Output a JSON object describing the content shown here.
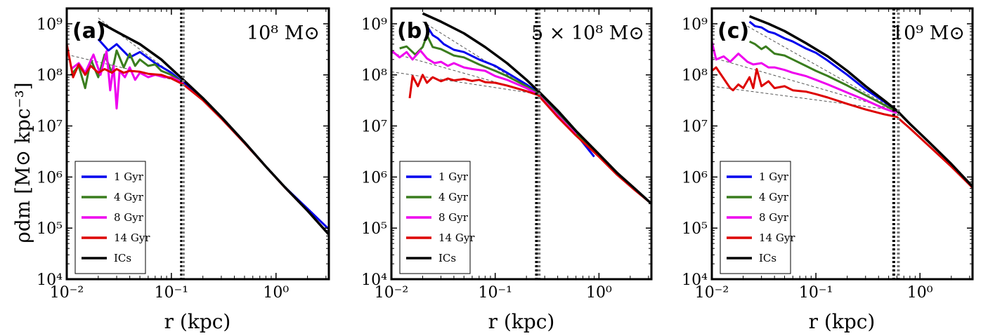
{
  "figure": {
    "ylabel": "ρdm [M⊙ kpc⁻³]",
    "xlabel": "r (kpc)"
  },
  "chart_data": [
    {
      "type": "line",
      "panel_tag": "(a)",
      "mass_label": "10⁸ M⊙",
      "xlabel": "r (kpc)",
      "ylabel": "ρdm [M⊙ kpc⁻³]",
      "xscale": "log",
      "yscale": "log",
      "xlim": [
        0.01,
        3.2
      ],
      "ylim": [
        10000,
        2000000000
      ],
      "xticks": [
        "10⁻²",
        "10⁻¹",
        "10⁰"
      ],
      "yticks": [
        "10⁴",
        "10⁵",
        "10⁶",
        "10⁷",
        "10⁸",
        "10⁹"
      ],
      "vlines": [
        0.125,
        0.13
      ],
      "legend": {
        "position": "lower-left",
        "entries": [
          {
            "label": "1 Gyr",
            "color": "#0000ee"
          },
          {
            "label": "4 Gyr",
            "color": "#3a7d1e"
          },
          {
            "label": "8 Gyr",
            "color": "#ee00ee"
          },
          {
            "label": "14 Gyr",
            "color": "#dd0000"
          },
          {
            "label": "ICs",
            "color": "#000000"
          }
        ]
      },
      "series": [
        {
          "name": "ICs",
          "color": "#000000",
          "x": [
            0.02,
            0.03,
            0.05,
            0.08,
            0.13,
            0.2,
            0.3,
            0.5,
            0.8,
            1.2,
            2.0,
            3.2
          ],
          "y": [
            1100000000,
            700000000,
            400000000,
            200000000,
            80000000,
            35000000,
            15000000,
            4800000,
            1600000,
            650000,
            220000,
            75000
          ]
        },
        {
          "name": "1 Gyr",
          "color": "#0000ee",
          "x": [
            0.02,
            0.025,
            0.03,
            0.04,
            0.05,
            0.07,
            0.1,
            0.13,
            0.2,
            0.3,
            0.5,
            0.8,
            1.2,
            2.0,
            3.2
          ],
          "y": [
            500000000,
            300000000,
            400000000,
            220000000,
            280000000,
            170000000,
            110000000,
            70000000,
            35000000,
            15000000,
            4800000,
            1600000,
            650000,
            240000,
            95000
          ]
        },
        {
          "name": "4 Gyr",
          "color": "#3a7d1e",
          "x": [
            0.011,
            0.013,
            0.015,
            0.017,
            0.02,
            0.023,
            0.027,
            0.03,
            0.035,
            0.04,
            0.045,
            0.05,
            0.06,
            0.07,
            0.08,
            0.1,
            0.13
          ],
          "y": [
            100000000,
            150000000,
            55000000,
            200000000,
            90000000,
            250000000,
            110000000,
            300000000,
            140000000,
            260000000,
            150000000,
            200000000,
            150000000,
            160000000,
            120000000,
            100000000,
            70000000
          ]
        },
        {
          "name": "8 Gyr",
          "color": "#ee00ee",
          "x": [
            0.011,
            0.013,
            0.015,
            0.018,
            0.021,
            0.024,
            0.026,
            0.028,
            0.03,
            0.032,
            0.036,
            0.04,
            0.045,
            0.05,
            0.06,
            0.07,
            0.085,
            0.1,
            0.13
          ],
          "y": [
            130000000,
            170000000,
            110000000,
            250000000,
            100000000,
            290000000,
            50000000,
            150000000,
            22000000,
            120000000,
            90000000,
            140000000,
            80000000,
            110000000,
            90000000,
            100000000,
            90000000,
            90000000,
            70000000
          ]
        },
        {
          "name": "14 Gyr",
          "color": "#dd0000",
          "x": [
            0.01,
            0.0115,
            0.013,
            0.015,
            0.017,
            0.02,
            0.023,
            0.027,
            0.03,
            0.035,
            0.04,
            0.05,
            0.06,
            0.08,
            0.1,
            0.13,
            0.2,
            0.3,
            0.5,
            0.8,
            1.2,
            2.0,
            3.2
          ],
          "y": [
            400000000,
            90000000,
            160000000,
            100000000,
            150000000,
            110000000,
            130000000,
            110000000,
            130000000,
            110000000,
            120000000,
            115000000,
            105000000,
            100000000,
            85000000,
            65000000,
            32000000,
            14000000,
            4600000,
            1600000,
            640000,
            220000,
            75000
          ]
        }
      ],
      "guides": [
        {
          "x": [
            0.01,
            0.13
          ],
          "y": [
            250000000,
            72000000
          ]
        },
        {
          "x": [
            0.02,
            0.13
          ],
          "y": [
            1300000000,
            72000000
          ]
        }
      ]
    },
    {
      "type": "line",
      "panel_tag": "(b)",
      "mass_label": "5 × 10⁸ M⊙",
      "xlabel": "r (kpc)",
      "ylabel": "",
      "xscale": "log",
      "yscale": "log",
      "xlim": [
        0.01,
        3.2
      ],
      "ylim": [
        10000,
        2000000000
      ],
      "xticks": [
        "10⁻²",
        "10⁻¹",
        "10⁰"
      ],
      "yticks": [
        "10⁴",
        "10⁵",
        "10⁶",
        "10⁷",
        "10⁸",
        "10⁹"
      ],
      "vlines": [
        0.25,
        0.265
      ],
      "legend": {
        "position": "lower-left",
        "entries": [
          {
            "label": "1 Gyr",
            "color": "#0000ee"
          },
          {
            "label": "4 Gyr",
            "color": "#3a7d1e"
          },
          {
            "label": "8 Gyr",
            "color": "#ee00ee"
          },
          {
            "label": "14 Gyr",
            "color": "#dd0000"
          },
          {
            "label": "ICs",
            "color": "#000000"
          }
        ]
      },
      "series": [
        {
          "name": "ICs",
          "color": "#000000",
          "x": [
            0.02,
            0.03,
            0.05,
            0.08,
            0.13,
            0.2,
            0.26,
            0.4,
            0.6,
            1.0,
            1.5,
            2.2,
            3.2
          ],
          "y": [
            1600000000,
            1100000000,
            650000000,
            350000000,
            170000000,
            80000000,
            48000000,
            20000000,
            8000000,
            2800000,
            1200000,
            600000,
            300000
          ]
        },
        {
          "name": "1 Gyr",
          "color": "#0000ee",
          "x": [
            0.022,
            0.025,
            0.028,
            0.032,
            0.04,
            0.05,
            0.07,
            0.1,
            0.13,
            0.2,
            0.26,
            0.4,
            0.6,
            0.9
          ],
          "y": [
            900000000,
            600000000,
            520000000,
            400000000,
            310000000,
            280000000,
            200000000,
            150000000,
            110000000,
            65000000,
            45000000,
            18000000,
            7000000,
            2500000
          ]
        },
        {
          "name": "4 Gyr",
          "color": "#3a7d1e",
          "x": [
            0.012,
            0.014,
            0.017,
            0.02,
            0.022,
            0.025,
            0.03,
            0.04,
            0.05,
            0.07,
            0.1,
            0.13,
            0.2,
            0.26,
            0.4,
            0.6,
            1.0
          ],
          "y": [
            330000000,
            360000000,
            250000000,
            350000000,
            600000000,
            350000000,
            320000000,
            240000000,
            220000000,
            160000000,
            120000000,
            95000000,
            60000000,
            43000000,
            17000000,
            7000000,
            2700000
          ]
        },
        {
          "name": "8 Gyr",
          "color": "#ee00ee",
          "x": [
            0.01,
            0.012,
            0.014,
            0.016,
            0.019,
            0.022,
            0.026,
            0.03,
            0.035,
            0.04,
            0.05,
            0.06,
            0.08,
            0.1,
            0.13,
            0.2,
            0.26,
            0.4,
            0.6
          ],
          "y": [
            300000000,
            220000000,
            280000000,
            200000000,
            300000000,
            210000000,
            170000000,
            180000000,
            150000000,
            170000000,
            140000000,
            130000000,
            120000000,
            95000000,
            80000000,
            55000000,
            41000000,
            16000000,
            6800000
          ]
        },
        {
          "name": "14 Gyr",
          "color": "#dd0000",
          "x": [
            0.015,
            0.016,
            0.018,
            0.02,
            0.022,
            0.025,
            0.03,
            0.035,
            0.04,
            0.05,
            0.06,
            0.07,
            0.08,
            0.1,
            0.13,
            0.2,
            0.26,
            0.4,
            0.6,
            1.0,
            1.5,
            2.2,
            3.2
          ],
          "y": [
            35000000,
            95000000,
            60000000,
            100000000,
            70000000,
            90000000,
            75000000,
            85000000,
            78000000,
            83000000,
            76000000,
            80000000,
            72000000,
            70000000,
            62000000,
            48000000,
            40000000,
            15000000,
            6500000,
            2500000,
            1100000,
            560000,
            300000
          ]
        }
      ],
      "guides": [
        {
          "x": [
            0.01,
            0.26
          ],
          "y": [
            115000000,
            42000000
          ]
        },
        {
          "x": [
            0.01,
            0.26
          ],
          "y": [
            270000000,
            42000000
          ]
        },
        {
          "x": [
            0.02,
            0.26
          ],
          "y": [
            1100000000,
            42000000
          ]
        }
      ]
    },
    {
      "type": "line",
      "panel_tag": "(c)",
      "mass_label": "10⁹ M⊙",
      "xlabel": "r (kpc)",
      "ylabel": "",
      "xscale": "log",
      "yscale": "log",
      "xlim": [
        0.01,
        3.2
      ],
      "ylim": [
        10000,
        2000000000
      ],
      "xticks": [
        "10⁻²",
        "10⁻¹",
        "10⁰"
      ],
      "yticks": [
        "10⁴",
        "10⁵",
        "10⁶",
        "10⁷",
        "10⁸",
        "10⁹"
      ],
      "vlines": [
        0.56,
        0.62
      ],
      "legend": {
        "position": "lower-left",
        "entries": [
          {
            "label": "1 Gyr",
            "color": "#0000ee"
          },
          {
            "label": "4 Gyr",
            "color": "#3a7d1e"
          },
          {
            "label": "8 Gyr",
            "color": "#ee00ee"
          },
          {
            "label": "14 Gyr",
            "color": "#dd0000"
          },
          {
            "label": "ICs",
            "color": "#000000"
          }
        ]
      },
      "series": [
        {
          "name": "ICs",
          "color": "#000000",
          "x": [
            0.023,
            0.035,
            0.05,
            0.08,
            0.13,
            0.2,
            0.3,
            0.45,
            0.6,
            0.8,
            1.2,
            2.0,
            3.2
          ],
          "y": [
            1400000000,
            1000000000,
            720000000,
            420000000,
            230000000,
            120000000,
            60000000,
            32000000,
            20000000,
            11000000,
            5000000,
            1800000,
            650000
          ]
        },
        {
          "name": "1 Gyr",
          "color": "#0000ee",
          "x": [
            0.023,
            0.026,
            0.03,
            0.035,
            0.04,
            0.05,
            0.06,
            0.08,
            0.1,
            0.13,
            0.2,
            0.3,
            0.45,
            0.6
          ],
          "y": [
            1100000000,
            900000000,
            850000000,
            700000000,
            650000000,
            520000000,
            450000000,
            330000000,
            270000000,
            190000000,
            100000000,
            52000000,
            30000000,
            20000000
          ]
        },
        {
          "name": "4 Gyr",
          "color": "#3a7d1e",
          "x": [
            0.023,
            0.026,
            0.03,
            0.033,
            0.04,
            0.05,
            0.06,
            0.08,
            0.1,
            0.13,
            0.2,
            0.3,
            0.45,
            0.6
          ],
          "y": [
            450000000,
            400000000,
            320000000,
            360000000,
            260000000,
            240000000,
            200000000,
            150000000,
            120000000,
            95000000,
            62000000,
            40000000,
            26000000,
            19000000
          ]
        },
        {
          "name": "8 Gyr",
          "color": "#ee00ee",
          "x": [
            0.01,
            0.011,
            0.013,
            0.015,
            0.018,
            0.022,
            0.025,
            0.03,
            0.035,
            0.04,
            0.05,
            0.06,
            0.08,
            0.1,
            0.13,
            0.2,
            0.3,
            0.45,
            0.6
          ],
          "y": [
            450000000,
            200000000,
            230000000,
            180000000,
            260000000,
            180000000,
            160000000,
            170000000,
            140000000,
            140000000,
            125000000,
            110000000,
            95000000,
            80000000,
            65000000,
            45000000,
            32000000,
            22000000,
            18000000
          ]
        },
        {
          "name": "14 Gyr",
          "color": "#dd0000",
          "x": [
            0.01,
            0.011,
            0.015,
            0.016,
            0.018,
            0.02,
            0.023,
            0.025,
            0.027,
            0.03,
            0.035,
            0.04,
            0.05,
            0.06,
            0.08,
            0.1,
            0.13,
            0.2,
            0.3,
            0.45,
            0.6,
            0.8,
            1.2,
            2.0,
            3.2
          ],
          "y": [
            120000000,
            140000000,
            55000000,
            50000000,
            65000000,
            55000000,
            90000000,
            55000000,
            130000000,
            60000000,
            75000000,
            55000000,
            60000000,
            50000000,
            47000000,
            42000000,
            36000000,
            27000000,
            21000000,
            17000000,
            15000000,
            9000000,
            4200000,
            1600000,
            620000
          ]
        }
      ],
      "guides": [
        {
          "x": [
            0.01,
            0.6
          ],
          "y": [
            60000000,
            20000000
          ]
        },
        {
          "x": [
            0.01,
            0.6
          ],
          "y": [
            220000000,
            20000000
          ]
        },
        {
          "x": [
            0.02,
            0.6
          ],
          "y": [
            1000000000,
            20000000
          ]
        }
      ]
    }
  ]
}
